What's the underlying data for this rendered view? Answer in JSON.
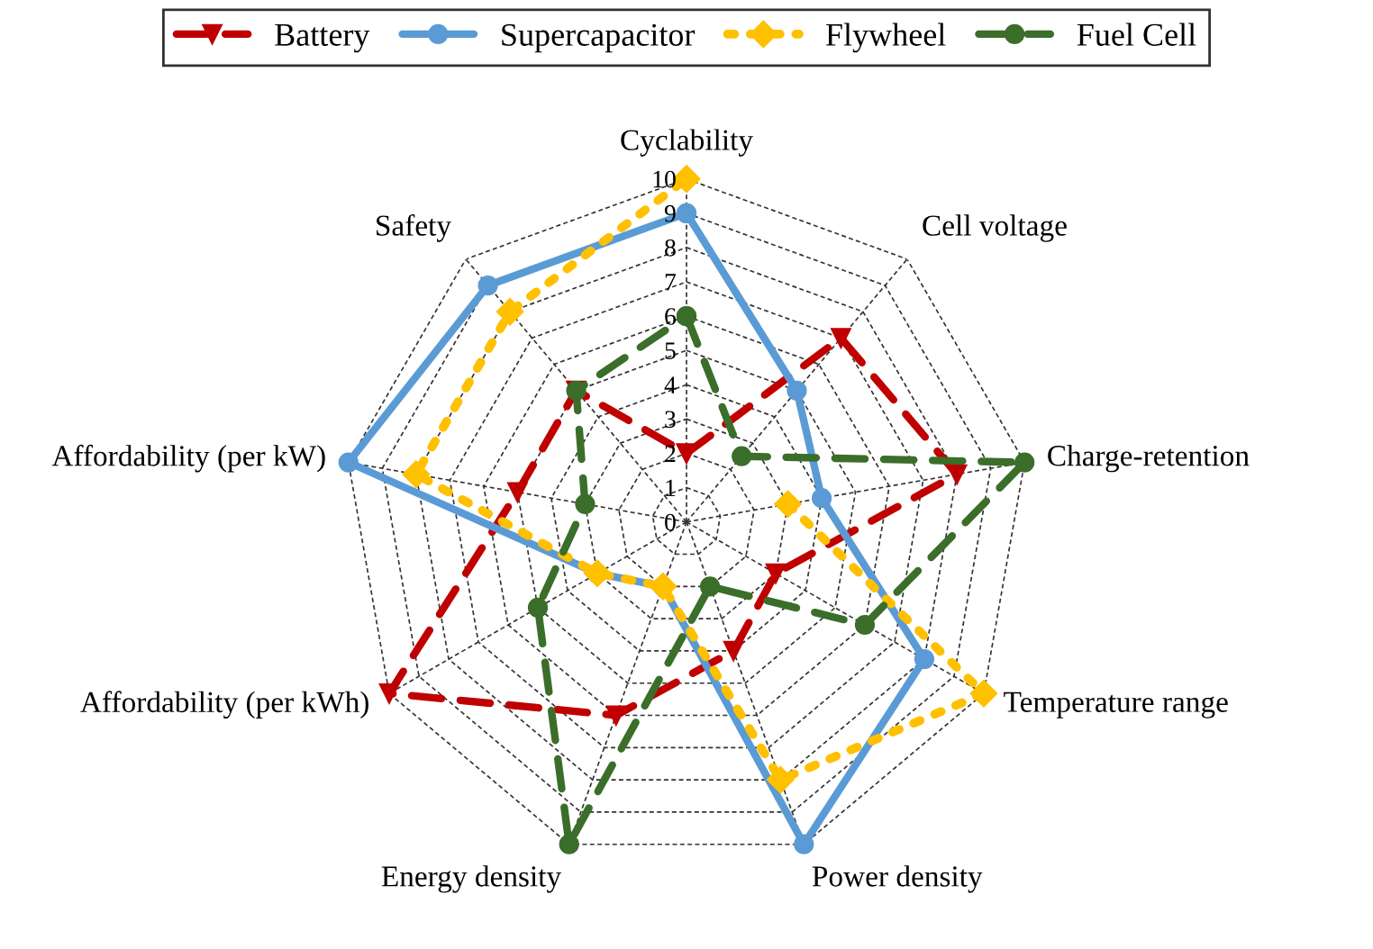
{
  "chart_data": {
    "type": "radar",
    "categories": [
      "Cyclability",
      "Cell voltage",
      "Charge-retention",
      "Temperature range",
      "Power density",
      "Energy density",
      "Affordability (per kWh)",
      "Affordability (per kW)",
      "Safety"
    ],
    "series": [
      {
        "name": "Battery",
        "color": "#c00000",
        "line_style": "dashed",
        "marker": "triangle",
        "values": [
          2,
          7,
          8,
          3,
          4,
          6,
          10,
          5,
          5
        ]
      },
      {
        "name": "Supercapacitor",
        "color": "#5b9bd5",
        "line_style": "solid",
        "marker": "circle",
        "values": [
          9,
          5,
          4,
          8,
          10,
          2,
          3,
          10,
          9
        ]
      },
      {
        "name": "Flywheel",
        "color": "#ffc000",
        "line_style": "dotted",
        "marker": "diamond",
        "values": [
          10,
          null,
          3,
          10,
          8,
          2,
          3,
          8,
          8
        ]
      },
      {
        "name": "Fuel Cell",
        "color": "#3b6e2a",
        "line_style": "dashed",
        "marker": "circle",
        "values": [
          6,
          2.5,
          10,
          6,
          2,
          10,
          5,
          3,
          5
        ]
      }
    ],
    "ylim": [
      0,
      10
    ],
    "yticks": [
      0,
      1,
      2,
      3,
      4,
      5,
      6,
      7,
      8,
      9,
      10
    ],
    "grid": true,
    "legend": "top"
  }
}
